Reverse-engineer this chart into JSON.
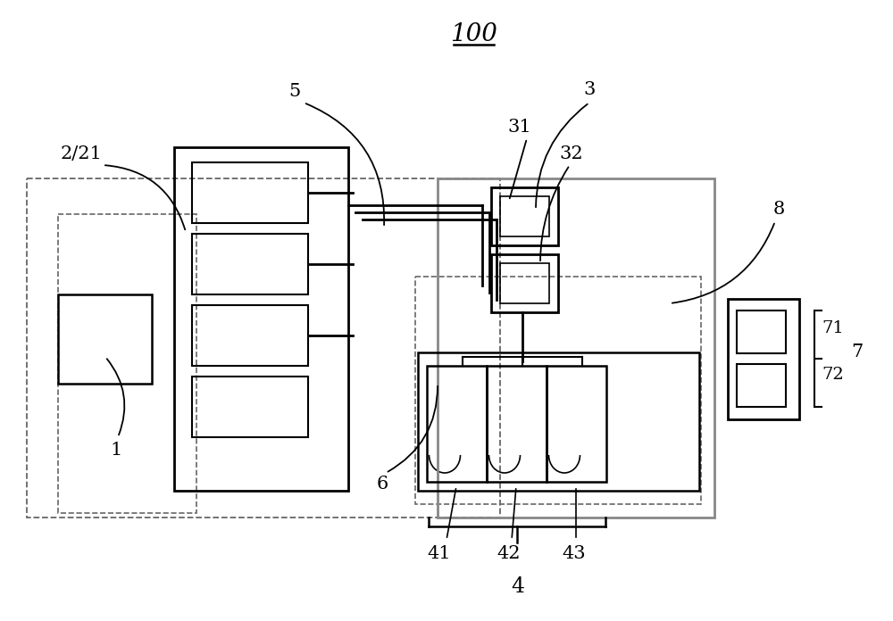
{
  "bg_color": "#ffffff",
  "lc": "#000000",
  "gc": "#888888",
  "title": "100",
  "figsize": [
    10.0,
    6.96
  ],
  "dpi": 100
}
